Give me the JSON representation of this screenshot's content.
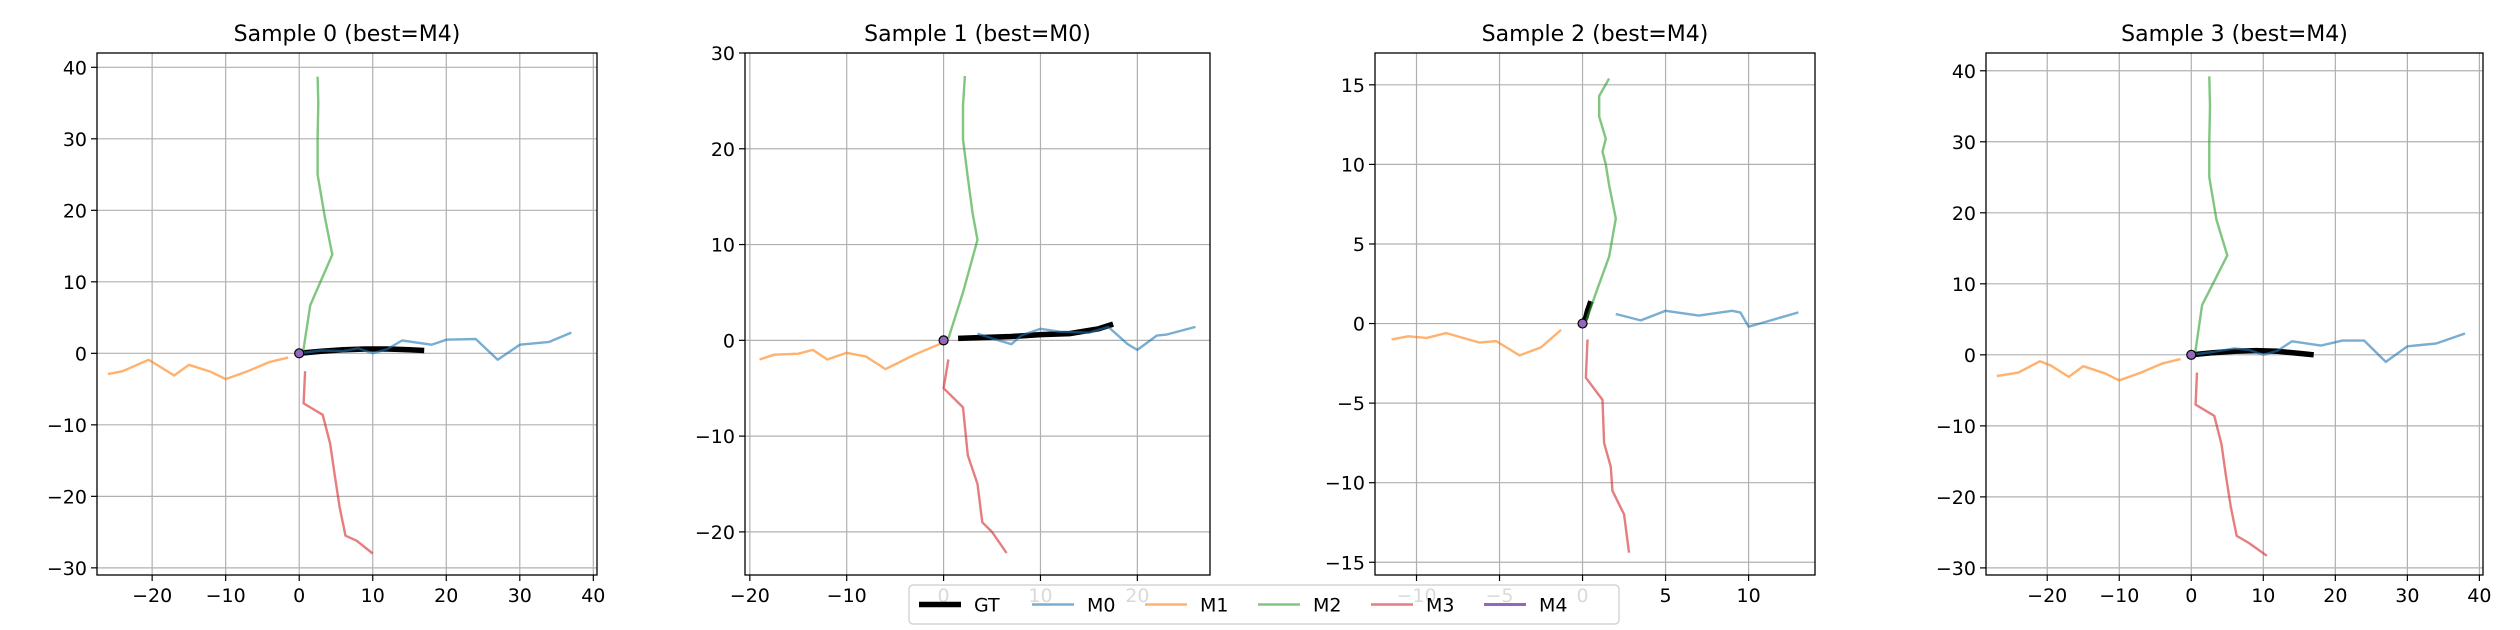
{
  "colors": {
    "GT": "#000000",
    "M0": "#1f77b4",
    "M1": "#ff7f0e",
    "M2": "#2ca02c",
    "M3": "#d62728",
    "M4": "#9467bd",
    "grid": "#b0b0b0"
  },
  "legend": {
    "placement": "bottom-center",
    "entries": [
      "GT",
      "M0",
      "M1",
      "M2",
      "M3",
      "M4"
    ]
  },
  "chart_data": [
    {
      "type": "line",
      "title": "Sample 0 (best=M4)",
      "xlim": [
        -27.5,
        40.5
      ],
      "ylim": [
        -31,
        42
      ],
      "xticks": [
        -20,
        -10,
        0,
        10,
        20,
        30,
        40
      ],
      "xtick_labels": [
        "−20",
        "−10",
        "0",
        "10",
        "20",
        "30",
        "40"
      ],
      "yticks": [
        -30,
        -20,
        -10,
        0,
        10,
        20,
        30,
        40
      ],
      "ytick_labels": [
        "−30",
        "−20",
        "−10",
        "0",
        "10",
        "20",
        "30",
        "40"
      ],
      "grid": true,
      "series": [
        {
          "name": "GT",
          "x": [
            0,
            3,
            6,
            9,
            12,
            15,
            17
          ],
          "y": [
            0,
            0.3,
            0.5,
            0.6,
            0.6,
            0.5,
            0.4
          ]
        },
        {
          "name": "M0",
          "x": [
            0,
            3,
            6,
            8,
            10,
            12,
            14,
            18,
            20,
            24,
            27,
            30,
            34,
            37
          ],
          "y": [
            0,
            0.4,
            0.3,
            0.7,
            0,
            0.6,
            1.8,
            1.2,
            1.9,
            2,
            -0.9,
            1.2,
            1.6,
            2.9
          ]
        },
        {
          "name": "M1",
          "x": [
            -1.5,
            -4,
            -7,
            -10,
            -12,
            -15,
            -17,
            -19.5,
            -20.5,
            -24,
            -26
          ],
          "y": [
            -0.6,
            -1.2,
            -2.5,
            -3.6,
            -2.6,
            -1.6,
            -3.1,
            -1.5,
            -0.9,
            -2.5,
            -2.9
          ]
        },
        {
          "name": "M2",
          "x": [
            0.5,
            1.5,
            4.5,
            3.5,
            2.5,
            2.5,
            2.6,
            2.5
          ],
          "y": [
            0,
            6.7,
            13.8,
            19,
            25,
            30,
            35,
            38.7
          ]
        },
        {
          "name": "M3",
          "x": [
            0.8,
            0.6,
            3.2,
            4.2,
            4.8,
            5.5,
            6.3,
            7.8,
            10
          ],
          "y": [
            -2.5,
            -7,
            -8.6,
            -12.6,
            -16.8,
            -21.5,
            -25.5,
            -26.2,
            -28
          ]
        },
        {
          "name": "M4",
          "x": [
            0
          ],
          "y": [
            0
          ]
        }
      ]
    },
    {
      "type": "line",
      "title": "Sample 1 (best=M0)",
      "xlim": [
        -20.5,
        27.5
      ],
      "ylim": [
        -24.5,
        30
      ],
      "xticks": [
        -20,
        -10,
        0,
        10,
        20
      ],
      "xtick_labels": [
        "−20",
        "−10",
        "0",
        "10",
        "20"
      ],
      "yticks": [
        -20,
        -10,
        0,
        10,
        20,
        30
      ],
      "ytick_labels": [
        "−20",
        "−10",
        "0",
        "10",
        "20",
        "30"
      ],
      "grid": true,
      "series": [
        {
          "name": "GT",
          "x": [
            1.5,
            4,
            7,
            10,
            13,
            16,
            17.5
          ],
          "y": [
            0.2,
            0.3,
            0.4,
            0.6,
            0.7,
            1.2,
            1.7
          ]
        },
        {
          "name": "M0",
          "x": [
            3.5,
            5,
            7,
            8,
            10,
            12,
            15,
            17,
            19,
            20,
            22,
            23,
            26
          ],
          "y": [
            0.7,
            0.2,
            -0.4,
            0.5,
            1.2,
            0.9,
            0.8,
            1.4,
            -0.4,
            -1,
            0.5,
            0.6,
            1.4
          ]
        },
        {
          "name": "M1",
          "x": [
            -0.2,
            -3,
            -6,
            -8,
            -10,
            -12,
            -13.5,
            -15,
            -17.5,
            -19
          ],
          "y": [
            -0.3,
            -1.5,
            -3,
            -1.7,
            -1.3,
            -2,
            -1,
            -1.4,
            -1.5,
            -2
          ]
        },
        {
          "name": "M2",
          "x": [
            0.5,
            2,
            3.5,
            3,
            2.5,
            2,
            2,
            2.2
          ],
          "y": [
            0.2,
            5,
            10.5,
            13.2,
            17,
            21,
            24.5,
            27.6
          ]
        },
        {
          "name": "M3",
          "x": [
            0.5,
            0,
            2,
            2.5,
            3.5,
            4,
            5,
            6.5
          ],
          "y": [
            -2,
            -5,
            -7,
            -12,
            -15,
            -19,
            -20,
            -22.2
          ]
        },
        {
          "name": "M4",
          "x": [
            0
          ],
          "y": [
            0
          ]
        }
      ]
    },
    {
      "type": "line",
      "title": "Sample 2 (best=M4)",
      "xlim": [
        -12.5,
        14
      ],
      "ylim": [
        -15.8,
        17
      ],
      "xticks": [
        -10,
        -5,
        0,
        5,
        10
      ],
      "xtick_labels": [
        "−10",
        "−5",
        "0",
        "5",
        "10"
      ],
      "yticks": [
        -15,
        -10,
        -5,
        0,
        5,
        10,
        15
      ],
      "ytick_labels": [
        "−15",
        "−10",
        "−5",
        "0",
        "5",
        "10",
        "15"
      ],
      "grid": true,
      "series": [
        {
          "name": "GT",
          "x": [
            0,
            0.2,
            0.3,
            0.4,
            0.5
          ],
          "y": [
            0,
            0.4,
            0.8,
            1.1,
            1.4
          ]
        },
        {
          "name": "M0",
          "x": [
            2,
            3.5,
            5,
            7,
            9,
            9.5,
            10,
            11,
            12,
            13
          ],
          "y": [
            0.6,
            0.2,
            0.8,
            0.5,
            0.8,
            0.7,
            -0.2,
            0.1,
            0.4,
            0.7
          ]
        },
        {
          "name": "M1",
          "x": [
            -1.3,
            -2.5,
            -3.8,
            -5.2,
            -6.2,
            -8.2,
            -9.4,
            -10.5,
            -11.5
          ],
          "y": [
            -0.4,
            -1.5,
            -2,
            -1.1,
            -1.2,
            -0.6,
            -0.9,
            -0.8,
            -1
          ]
        },
        {
          "name": "M2",
          "x": [
            0.2,
            0.8,
            1.6,
            2,
            1.6,
            1.4,
            1.2,
            1.4,
            1,
            1,
            1.6
          ],
          "y": [
            0.1,
            1.9,
            4.2,
            6.6,
            8.7,
            10,
            10.8,
            11.6,
            13,
            14.3,
            15.4
          ]
        },
        {
          "name": "M3",
          "x": [
            0.3,
            0.2,
            1.2,
            1.3,
            1.7,
            1.8,
            2.5,
            2.8
          ],
          "y": [
            -1,
            -3.4,
            -4.8,
            -7.5,
            -9,
            -10.5,
            -12,
            -14.4
          ]
        },
        {
          "name": "M4",
          "x": [
            0
          ],
          "y": [
            0
          ]
        }
      ]
    },
    {
      "type": "line",
      "title": "Sample 3 (best=M4)",
      "xlim": [
        -28.5,
        40.5
      ],
      "ylim": [
        -31,
        42.5
      ],
      "xticks": [
        -20,
        -10,
        0,
        10,
        20,
        30,
        40
      ],
      "xtick_labels": [
        "−20",
        "−10",
        "0",
        "10",
        "20",
        "30",
        "40"
      ],
      "yticks": [
        -30,
        -20,
        -10,
        0,
        10,
        20,
        30,
        40
      ],
      "ytick_labels": [
        "−30",
        "−20",
        "−10",
        "0",
        "10",
        "20",
        "30",
        "40"
      ],
      "grid": true,
      "series": [
        {
          "name": "GT",
          "x": [
            0,
            3,
            6,
            9,
            12,
            15,
            17
          ],
          "y": [
            0,
            0.3,
            0.5,
            0.6,
            0.5,
            0.2,
            0
          ]
        },
        {
          "name": "M0",
          "x": [
            0,
            3,
            6,
            8,
            10,
            12,
            14,
            18,
            21,
            24,
            27,
            30,
            34,
            38
          ],
          "y": [
            0,
            0.4,
            0.9,
            0.7,
            0,
            0.6,
            1.9,
            1.3,
            2,
            2,
            -1,
            1.2,
            1.6,
            3
          ]
        },
        {
          "name": "M1",
          "x": [
            -1.5,
            -4,
            -7,
            -10,
            -12,
            -15,
            -17,
            -19.5,
            -21,
            -24,
            -27
          ],
          "y": [
            -0.6,
            -1.2,
            -2.5,
            -3.6,
            -2.6,
            -1.6,
            -3.1,
            -1.5,
            -0.9,
            -2.5,
            -3
          ]
        },
        {
          "name": "M2",
          "x": [
            0.5,
            1.5,
            5,
            3.5,
            2.5,
            2.5,
            2.6,
            2.5
          ],
          "y": [
            0,
            7,
            14,
            19,
            25,
            30,
            35,
            39.2
          ]
        },
        {
          "name": "M3",
          "x": [
            0.8,
            0.6,
            3.2,
            4.2,
            4.8,
            5.5,
            6.3,
            8,
            10.5
          ],
          "y": [
            -2.5,
            -7,
            -8.6,
            -12.6,
            -17,
            -21.5,
            -25.5,
            -26.5,
            -28.3
          ]
        },
        {
          "name": "M4",
          "x": [
            0
          ],
          "y": [
            0
          ]
        }
      ]
    }
  ]
}
